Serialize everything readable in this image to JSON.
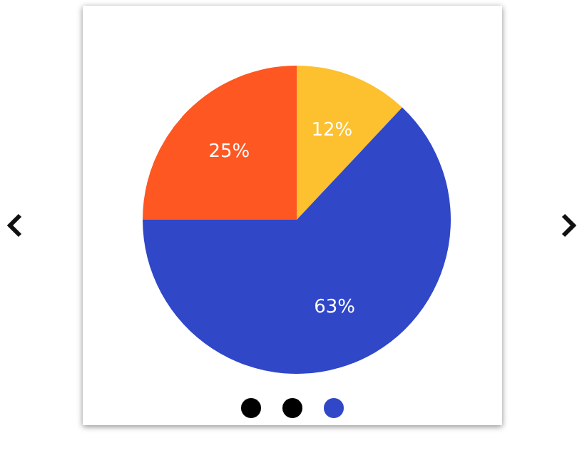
{
  "chart_data": {
    "type": "pie",
    "categories": [
      null,
      null,
      null
    ],
    "values": [
      12,
      63,
      25
    ],
    "colors": [
      "#fdc02f",
      "#3047c8",
      "#fe5722"
    ],
    "value_labels": [
      "12%",
      "63%",
      "25%"
    ],
    "legend": false
  }
}
